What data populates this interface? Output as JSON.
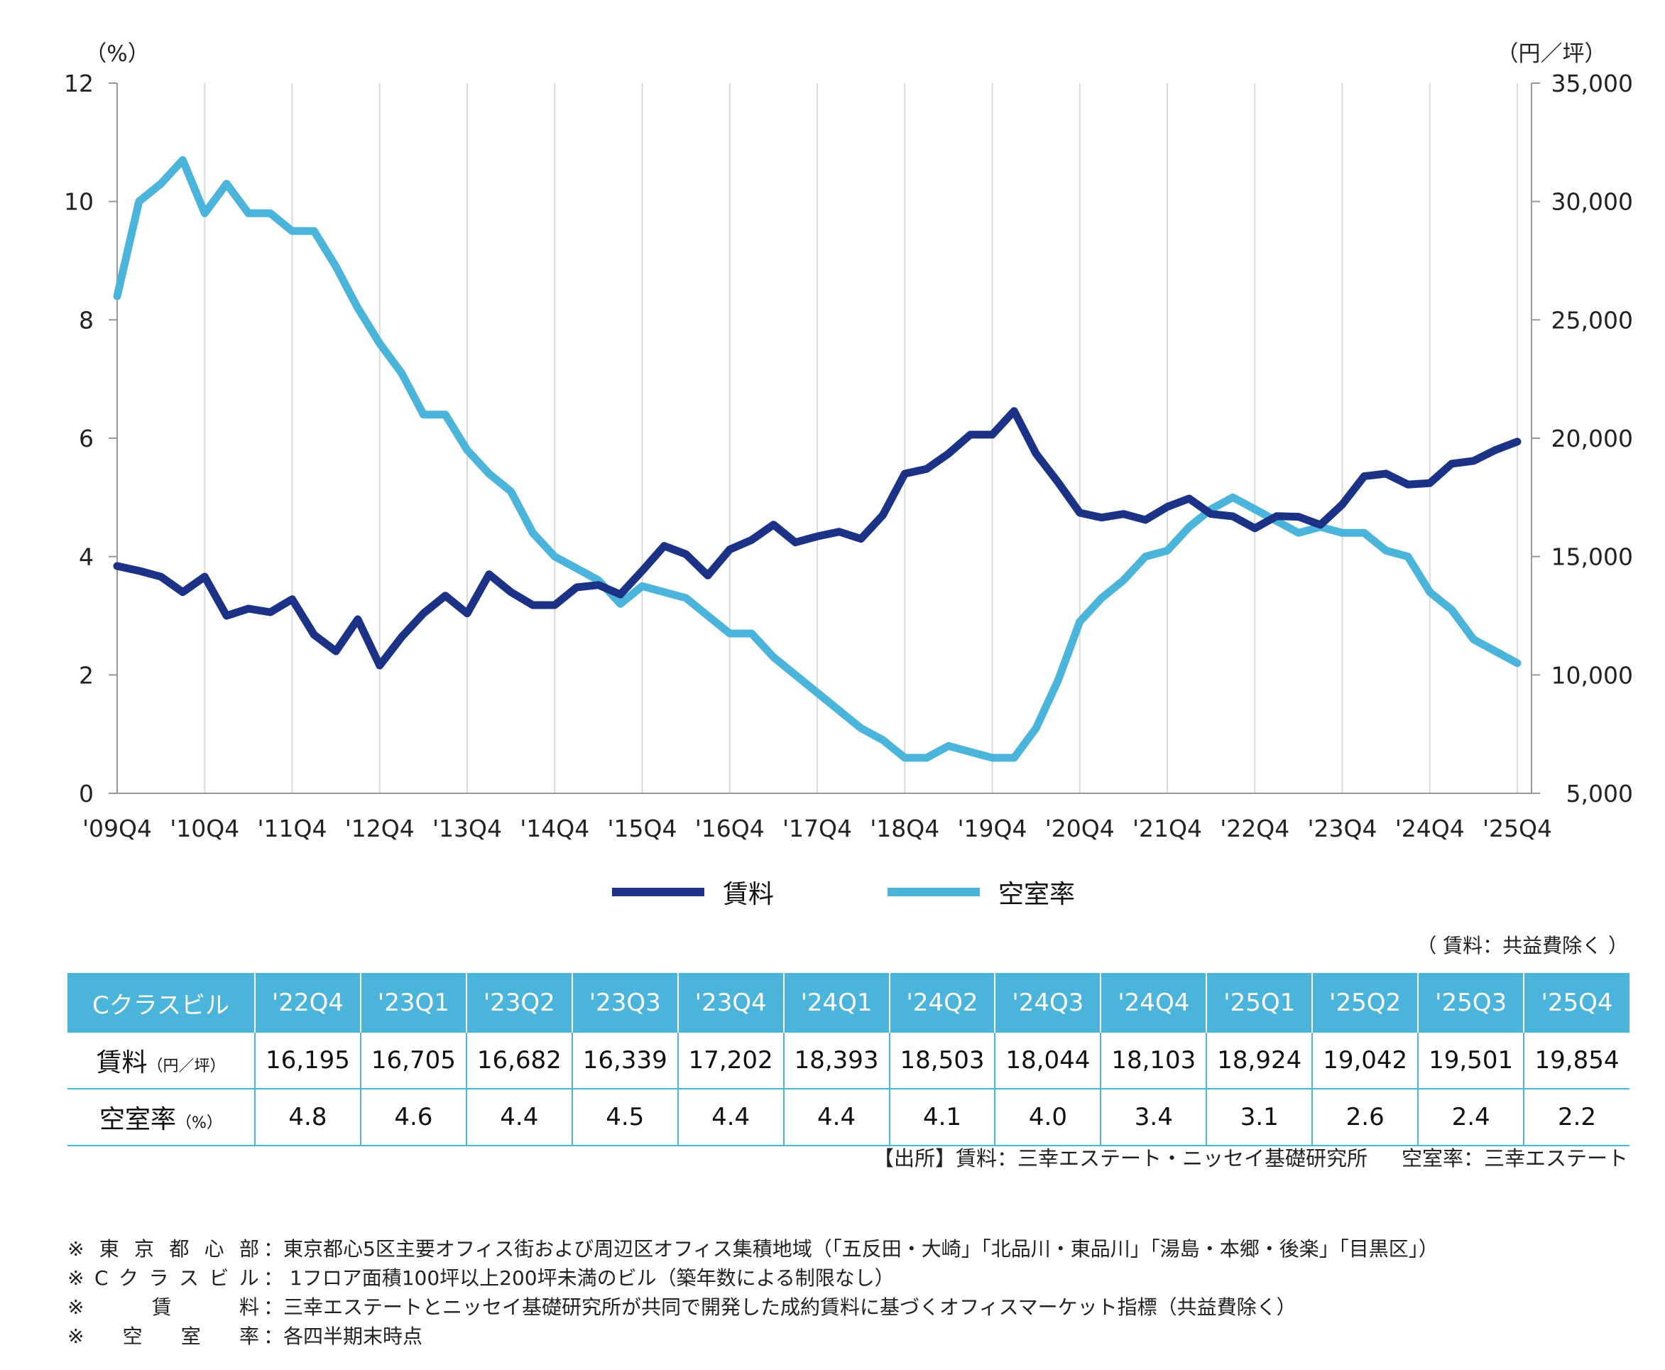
{
  "chart_data": {
    "type": "line",
    "left_axis_unit": "（%）",
    "right_axis_unit": "（円／坪）",
    "left_ticks": [
      "0",
      "2",
      "4",
      "6",
      "8",
      "10",
      "12"
    ],
    "right_ticks": [
      "5,000",
      "10,000",
      "15,000",
      "20,000",
      "25,000",
      "30,000",
      "35,000"
    ],
    "left_ylim": [
      0,
      12
    ],
    "right_ylim": [
      5000,
      35000
    ],
    "x_tick_labels": [
      "'09Q4",
      "'10Q4",
      "'11Q4",
      "'12Q4",
      "'13Q4",
      "'14Q4",
      "'15Q4",
      "'16Q4",
      "'17Q4",
      "'18Q4",
      "'19Q4",
      "'20Q4",
      "'21Q4",
      "'22Q4",
      "'23Q4",
      "'24Q4",
      "'25Q4"
    ],
    "grid": "vertical lines at each Q4",
    "x_periods": [
      "'09Q4",
      "'10Q1",
      "'10Q2",
      "'10Q3",
      "'10Q4",
      "'11Q1",
      "'11Q2",
      "'11Q3",
      "'11Q4",
      "'12Q1",
      "'12Q2",
      "'12Q3",
      "'12Q4",
      "'13Q1",
      "'13Q2",
      "'13Q3",
      "'13Q4",
      "'14Q1",
      "'14Q2",
      "'14Q3",
      "'14Q4",
      "'15Q1",
      "'15Q2",
      "'15Q3",
      "'15Q4",
      "'16Q1",
      "'16Q2",
      "'16Q3",
      "'16Q4",
      "'17Q1",
      "'17Q2",
      "'17Q3",
      "'17Q4",
      "'18Q1",
      "'18Q2",
      "'18Q3",
      "'18Q4",
      "'19Q1",
      "'19Q2",
      "'19Q3",
      "'19Q4",
      "'20Q1",
      "'20Q2",
      "'20Q3",
      "'20Q4",
      "'21Q1",
      "'21Q2",
      "'21Q3",
      "'21Q4",
      "'22Q1",
      "'22Q2",
      "'22Q3",
      "'22Q4",
      "'23Q1",
      "'23Q2",
      "'23Q3",
      "'23Q4",
      "'24Q1",
      "'24Q2",
      "'24Q3",
      "'24Q4",
      "'25Q1",
      "'25Q2",
      "'25Q3",
      "'25Q4"
    ],
    "series": [
      {
        "name": "賃料",
        "axis": "right",
        "color": "#1c3287",
        "values": [
          14600,
          14400,
          14150,
          13500,
          14150,
          12500,
          12800,
          12650,
          13200,
          11700,
          11000,
          12350,
          10400,
          11600,
          12600,
          13350,
          12600,
          14250,
          13500,
          12950,
          12950,
          13700,
          13800,
          13400,
          14400,
          15450,
          15100,
          14200,
          15300,
          15700,
          16350,
          15600,
          15850,
          16050,
          15750,
          16750,
          18500,
          18700,
          19350,
          20150,
          20150,
          21150,
          19350,
          18150,
          16850,
          16650,
          16800,
          16550,
          17100,
          17450,
          16800,
          16700,
          16195,
          16705,
          16682,
          16339,
          17202,
          18393,
          18503,
          18044,
          18103,
          18924,
          19042,
          19501,
          19854
        ]
      },
      {
        "name": "空室率",
        "axis": "left",
        "color": "#4bb4da",
        "values": [
          8.4,
          10.0,
          10.3,
          10.7,
          9.8,
          10.3,
          9.8,
          9.8,
          9.5,
          9.5,
          8.9,
          8.2,
          7.6,
          7.1,
          6.4,
          6.4,
          5.8,
          5.4,
          5.1,
          4.4,
          4.0,
          3.8,
          3.6,
          3.2,
          3.5,
          3.4,
          3.3,
          3.0,
          2.7,
          2.7,
          2.3,
          2.0,
          1.7,
          1.4,
          1.1,
          0.9,
          0.6,
          0.6,
          0.8,
          0.7,
          0.6,
          0.6,
          1.1,
          1.9,
          2.9,
          3.3,
          3.6,
          4.0,
          4.1,
          4.5,
          4.8,
          5.0,
          4.8,
          4.6,
          4.4,
          4.5,
          4.4,
          4.4,
          4.1,
          4.0,
          3.4,
          3.1,
          2.6,
          2.4,
          2.2
        ]
      }
    ]
  },
  "legend": [
    {
      "label": "賃料",
      "color": "#1c3287"
    },
    {
      "label": "空室率",
      "color": "#4bb4da"
    }
  ],
  "table_note": "（ 賃料：共益費除く ）",
  "table": {
    "corner": "Cクラスビル",
    "columns": [
      "'22Q4",
      "'23Q1",
      "'23Q2",
      "'23Q3",
      "'23Q4",
      "'24Q1",
      "'24Q2",
      "'24Q3",
      "'24Q4",
      "'25Q1",
      "'25Q2",
      "'25Q3",
      "'25Q4"
    ],
    "rows": [
      {
        "label": "賃料",
        "unit": "（円／坪）",
        "values": [
          "16,195",
          "16,705",
          "16,682",
          "16,339",
          "17,202",
          "18,393",
          "18,503",
          "18,044",
          "18,103",
          "18,924",
          "19,042",
          "19,501",
          "19,854"
        ]
      },
      {
        "label": "空室率",
        "unit": "（%）",
        "values": [
          "4.8",
          "4.6",
          "4.4",
          "4.5",
          "4.4",
          "4.4",
          "4.1",
          "4.0",
          "3.4",
          "3.1",
          "2.6",
          "2.4",
          "2.2"
        ]
      }
    ]
  },
  "source": {
    "rent": "【出所】賃料：三幸エステート・ニッセイ基礎研究所",
    "vacancy": "空室率：三幸エステート"
  },
  "notes": [
    {
      "key": "※東京都心部",
      "text": "：東京都心5区主要オフィス街および周辺区オフィス集積地域（「五反田・大崎」「北品川・東品川」「湯島・本郷・後楽」「目黒区」）"
    },
    {
      "key": "※Cクラスビル",
      "text": "： 1フロア面積100坪以上200坪未満のビル（築年数による制限なし）"
    },
    {
      "key": "※賃料",
      "text": "：三幸エステートとニッセイ基礎研究所が共同で開発した成約賃料に基づくオフィスマーケット指標（共益費除く）"
    },
    {
      "key": "※空室率",
      "text": "：各四半期末時点"
    }
  ]
}
